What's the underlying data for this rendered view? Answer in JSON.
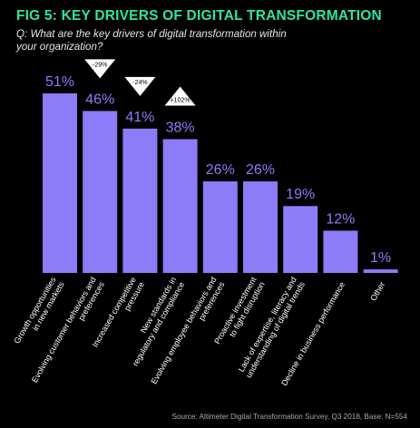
{
  "figure": {
    "title": "FIG 5: KEY DRIVERS OF DIGITAL TRANSFORMATION",
    "question_line1": "Q: What are the key drivers of digital transformation within",
    "question_line2": "your organization?",
    "source": "Source: Altimeter Digital Transformation Survey, Q3 2018, Base: N=554"
  },
  "colors": {
    "bar": "#8c7cf7",
    "title": "#2ee59d",
    "value_label": "#8c7cf7",
    "category_label": "#ffffff",
    "badge_fill": "#ffffff",
    "badge_text": "#000000"
  },
  "chart_data": {
    "type": "bar",
    "title": "FIG 5: KEY DRIVERS OF DIGITAL TRANSFORMATION",
    "xlabel": "",
    "ylabel": "",
    "ylim": [
      0,
      51
    ],
    "grid": false,
    "categories": [
      [
        "Growth opportunities",
        "in new markets"
      ],
      [
        "Evolving customer behaviors and",
        "preferences"
      ],
      [
        "Increased competitive",
        "pressure"
      ],
      [
        "New standards in",
        "regulatory and compliance"
      ],
      [
        "Evolving employee behaviors and",
        "preferences"
      ],
      [
        "Proactive investment",
        "to fight disruption"
      ],
      [
        "Lack of expertise, literacy and",
        "understanding of digital trends"
      ],
      [
        "Decline in business performance"
      ],
      [
        "Other"
      ]
    ],
    "values": [
      51,
      46,
      41,
      38,
      26,
      26,
      19,
      12,
      1
    ],
    "value_labels": [
      "51%",
      "46%",
      "41%",
      "38%",
      "26%",
      "26%",
      "19%",
      "12%",
      "1%"
    ],
    "annotations": [
      {
        "category_index": 1,
        "text": "-29%",
        "direction": "down"
      },
      {
        "category_index": 2,
        "text": "-24%",
        "direction": "down"
      },
      {
        "category_index": 3,
        "text": "+102%",
        "direction": "up"
      }
    ]
  }
}
